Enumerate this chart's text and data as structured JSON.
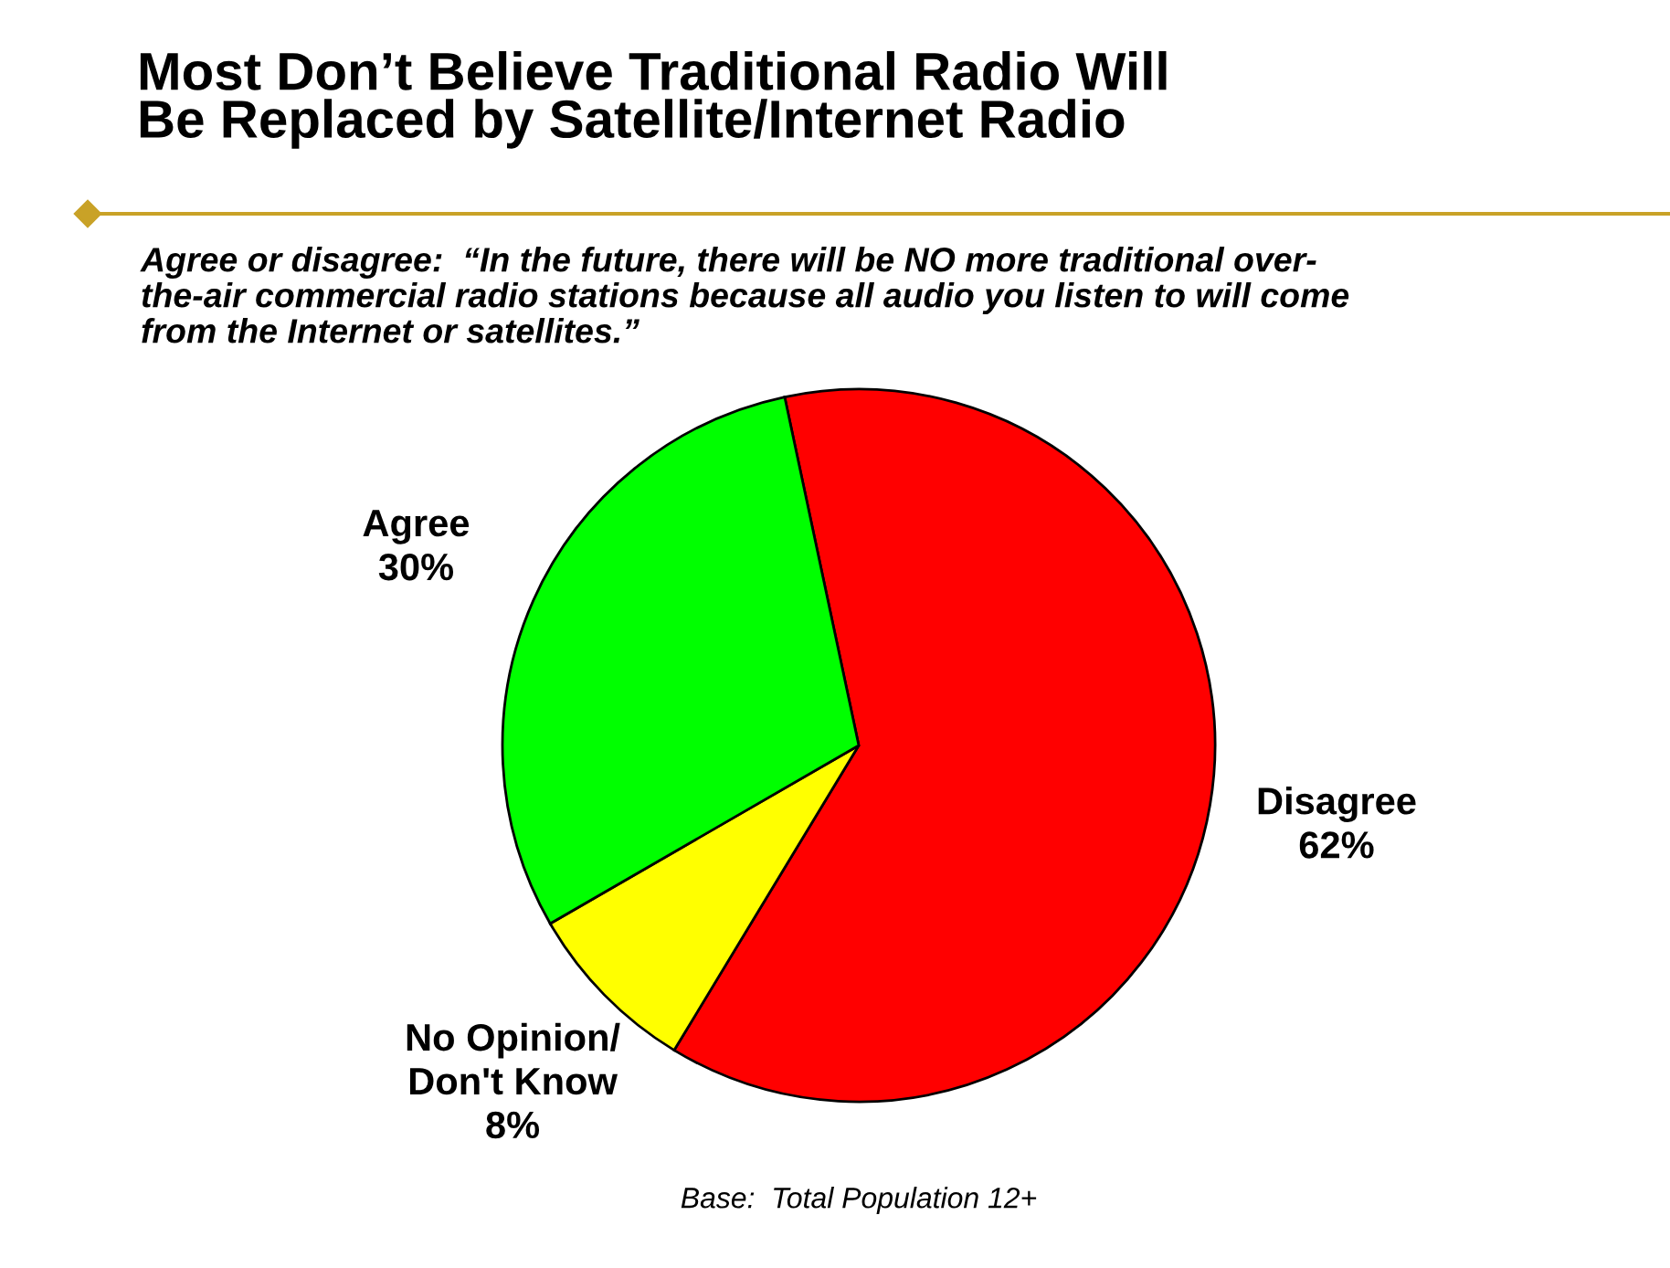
{
  "chart_data": {
    "type": "pie",
    "title": "Most Don’t Believe Traditional Radio Will\nBe Replaced by Satellite/Internet Radio",
    "subtitle": "Agree or disagree:  “In the future, there will be NO more traditional over-\nthe-air commercial radio stations because all audio you listen to will come\nfrom the Internet or satellites.”",
    "categories": [
      "Disagree",
      "No Opinion/\nDon't Know",
      "Agree"
    ],
    "values": [
      62,
      8,
      30
    ],
    "colors": [
      "#ff0000",
      "#ffff00",
      "#00ff00"
    ],
    "value_labels": [
      "62%",
      "8%",
      "30%"
    ],
    "legend": false,
    "annotations": [
      "Base:  Total Population 12+"
    ]
  }
}
